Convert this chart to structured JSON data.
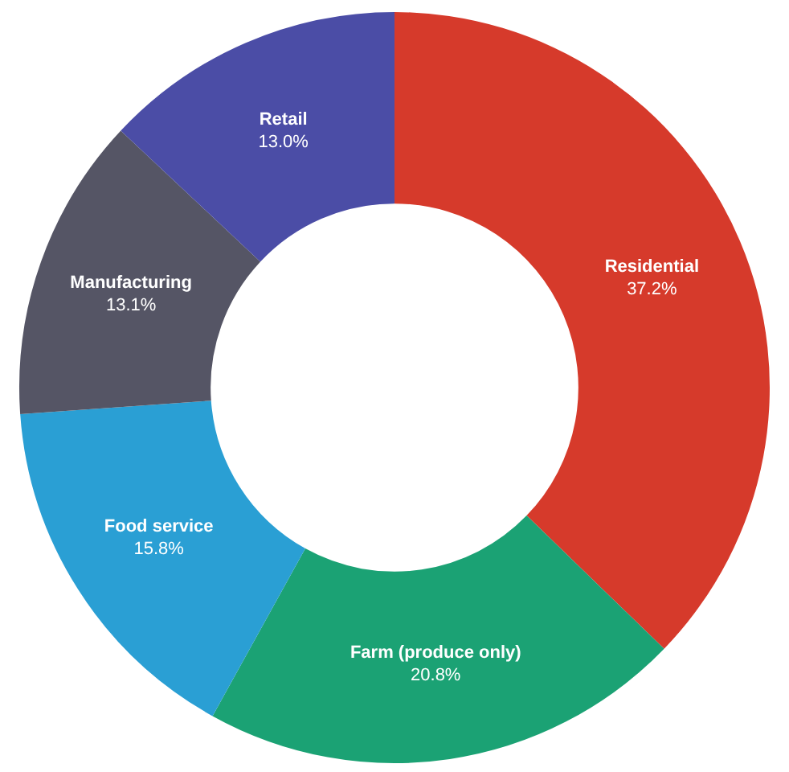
{
  "chart_data": {
    "type": "donut",
    "categories": [
      "Residential",
      "Farm (produce only)",
      "Food service",
      "Manufacturing",
      "Retail"
    ],
    "values": [
      37.2,
      20.8,
      15.8,
      13.1,
      13.0
    ],
    "value_labels": [
      "37.2%",
      "20.8%",
      "15.8%",
      "13.1%",
      "13.0%"
    ],
    "colors": [
      "#d63a2b",
      "#1ba274",
      "#2a9fd4",
      "#555565",
      "#4b4da6"
    ],
    "legend": false
  }
}
